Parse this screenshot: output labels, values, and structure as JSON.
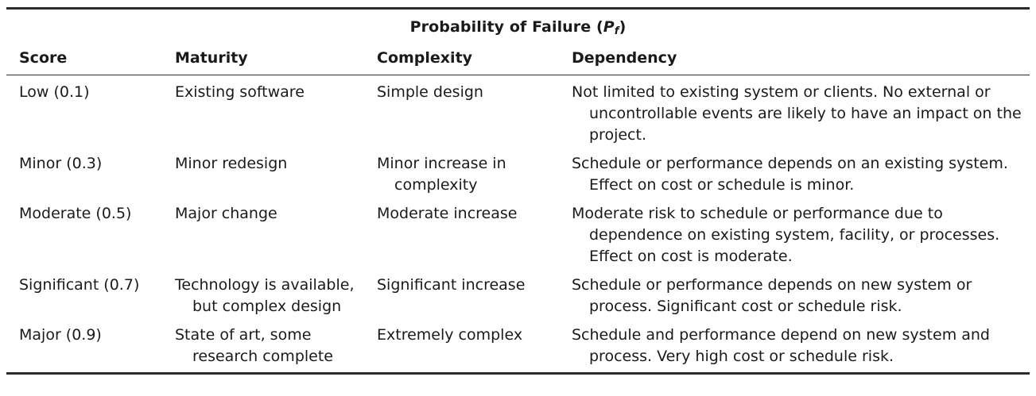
{
  "table": {
    "caption_prefix": "Probability of Failure (",
    "caption_symbol": "P",
    "caption_subscript": "f",
    "caption_suffix": ")",
    "headers": [
      "Score",
      "Maturity",
      "Complexity",
      "Dependency"
    ],
    "rows": [
      {
        "score": "Low (0.1)",
        "maturity": "Existing software",
        "complexity": "Simple design",
        "dependency": "Not limited to existing system or clients. No external or uncontrollable events are likely to have an impact on the project."
      },
      {
        "score": "Minor (0.3)",
        "maturity": "Minor redesign",
        "complexity": "Minor increase in complexity",
        "dependency": "Schedule or performance depends on an existing system. Effect on cost or schedule is minor."
      },
      {
        "score": "Moderate (0.5)",
        "maturity": "Major change",
        "complexity": "Moderate increase",
        "dependency": "Moderate risk to schedule or performance due to dependence on existing system, facility, or processes. Effect on cost is moderate."
      },
      {
        "score": "Significant (0.7)",
        "maturity": "Technology is available, but complex design",
        "complexity": "Significant increase",
        "dependency": "Schedule or performance depends on new system or process. Significant cost or schedule risk."
      },
      {
        "score": "Major (0.9)",
        "maturity": "State of art, some research complete",
        "complexity": "Extremely complex",
        "dependency": "Schedule and performance depend on new system and process. Very high cost or schedule risk."
      }
    ]
  }
}
